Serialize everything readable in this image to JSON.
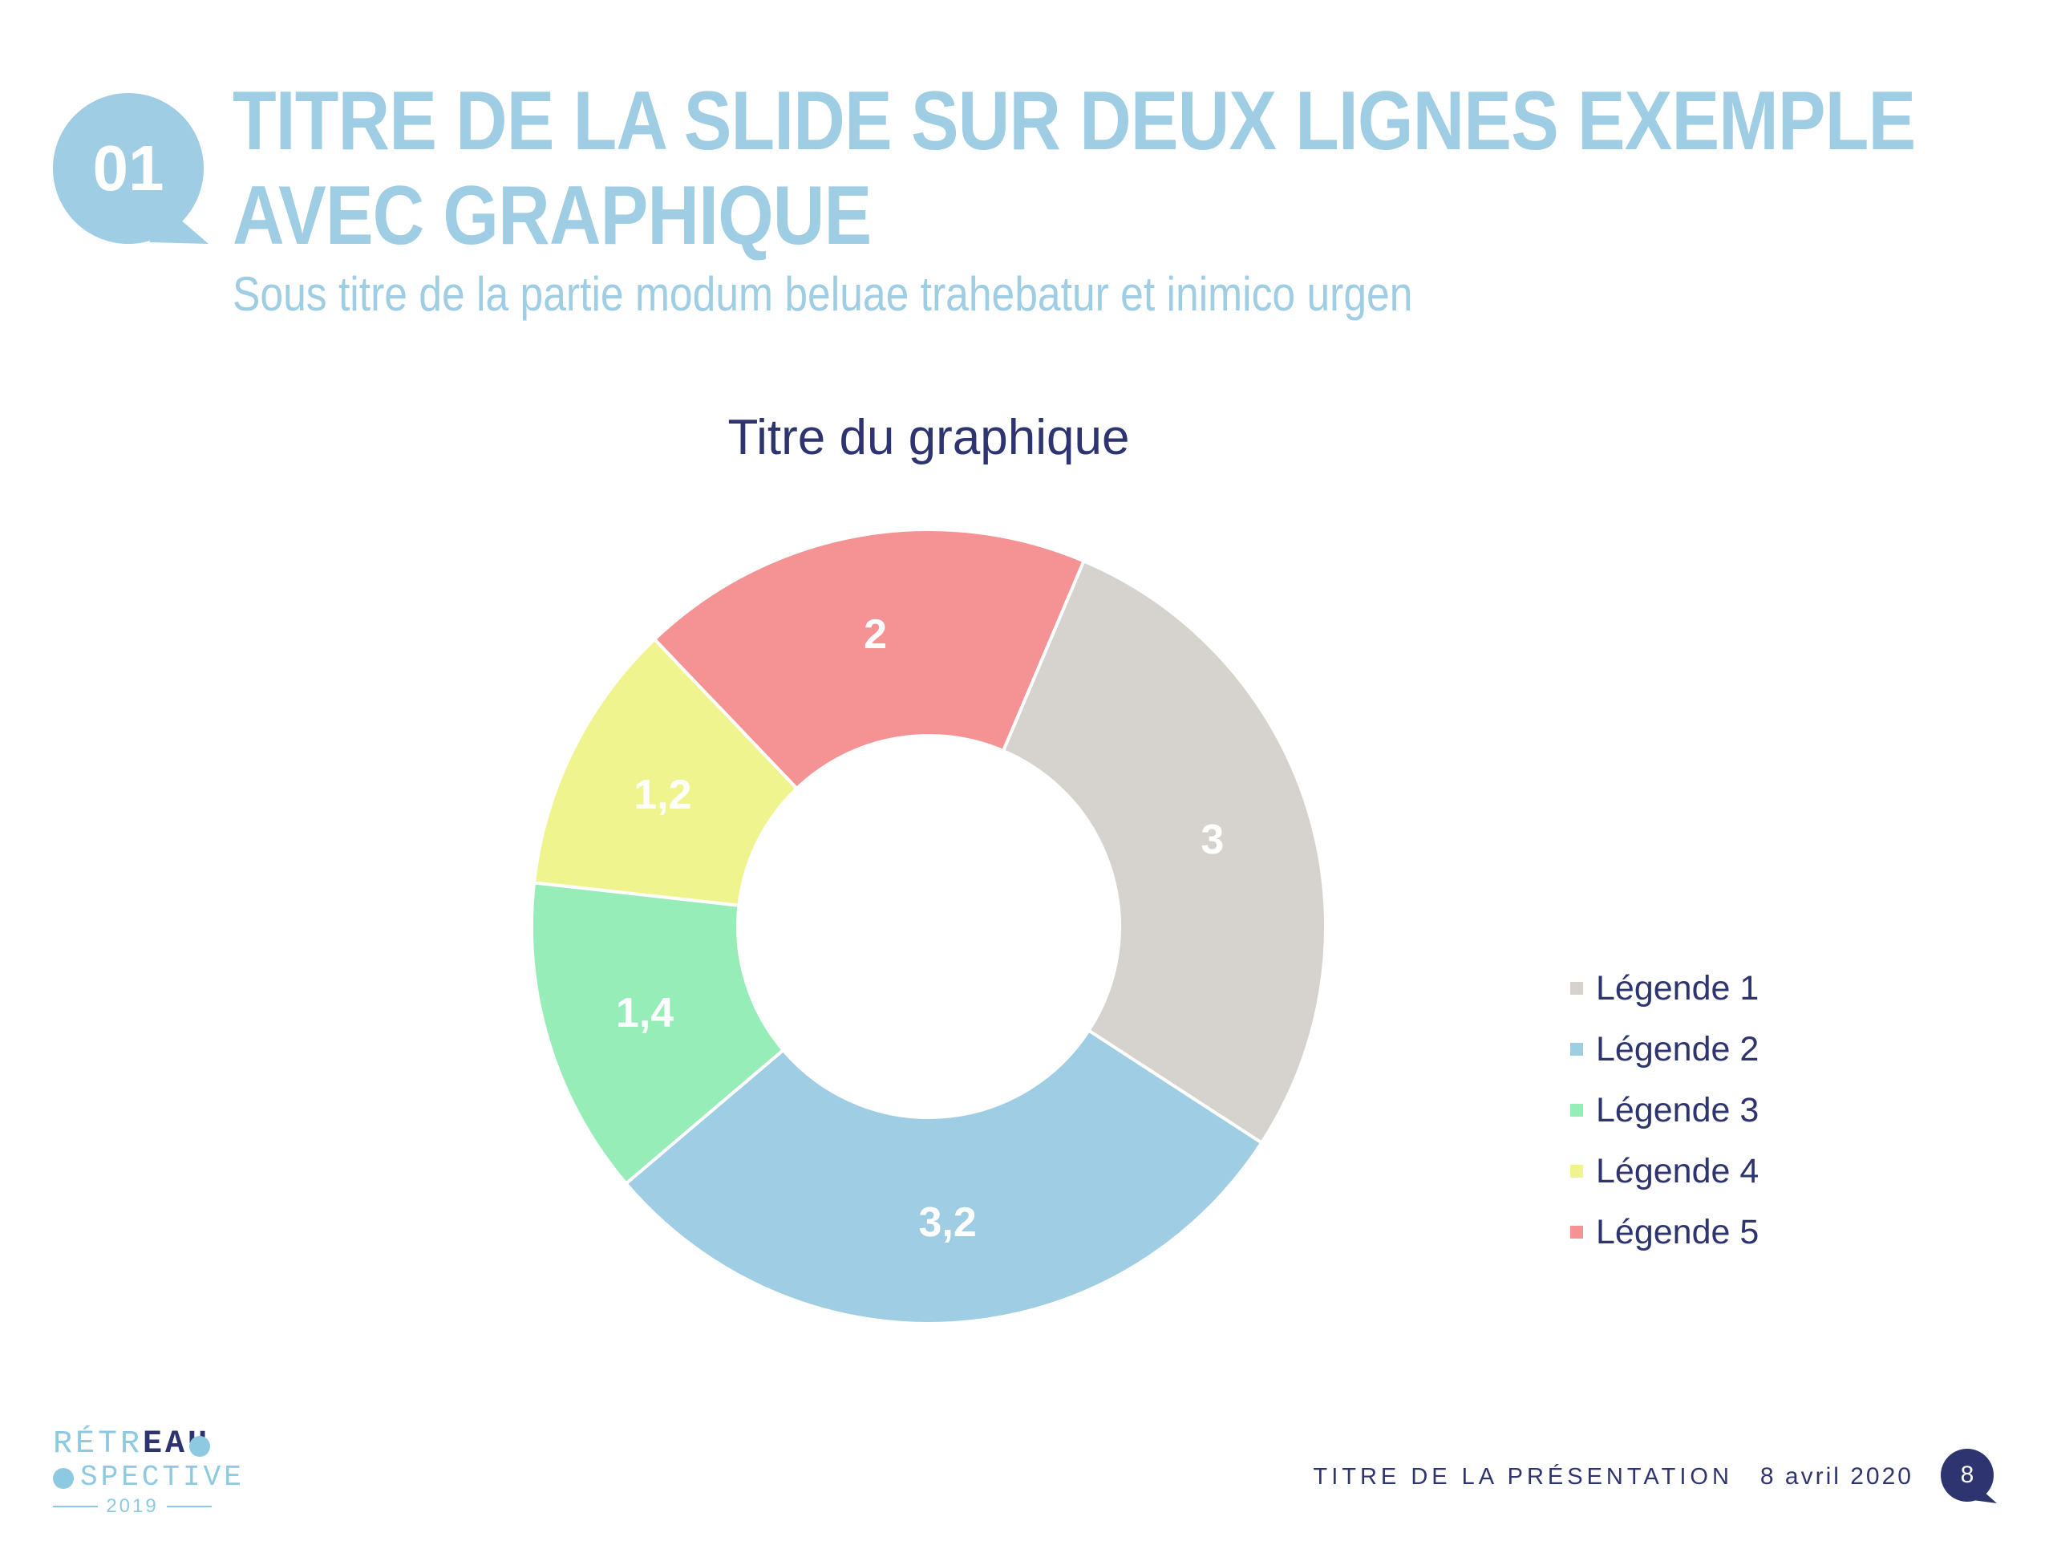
{
  "slide": {
    "number_badge": "01",
    "title_line1": "TITRE DE LA SLIDE SUR DEUX LIGNES EXEMPLE",
    "title_line2": "AVEC GRAPHIQUE",
    "subtitle": "Sous titre de la partie modum beluae trahebatur et inimico urgen"
  },
  "chart_data": {
    "type": "pie",
    "subtype": "donut",
    "title": "Titre du graphique",
    "categories": [
      "Légende 1",
      "Légende 2",
      "Légende 3",
      "Légende 4",
      "Légende 5"
    ],
    "values": [
      3,
      3.2,
      1.4,
      1.2,
      2
    ],
    "data_labels": [
      "3",
      "3,2",
      "1,4",
      "1,2",
      "2"
    ],
    "colors": [
      "#d6d3cf",
      "#9fcde3",
      "#96edb7",
      "#f0f48e",
      "#f59293"
    ],
    "legend_position": "right"
  },
  "footer": {
    "presentation_title": "TITRE DE LA PRÉSENTATION",
    "date": "8 avril 2020",
    "page_number": "8"
  },
  "logo": {
    "line1_a": "RÉTR",
    "line1_b": "EAU",
    "line2": "SPECTIVE",
    "year": "2019"
  },
  "colors": {
    "accent_light": "#9fcde3",
    "navy": "#2e3470"
  }
}
